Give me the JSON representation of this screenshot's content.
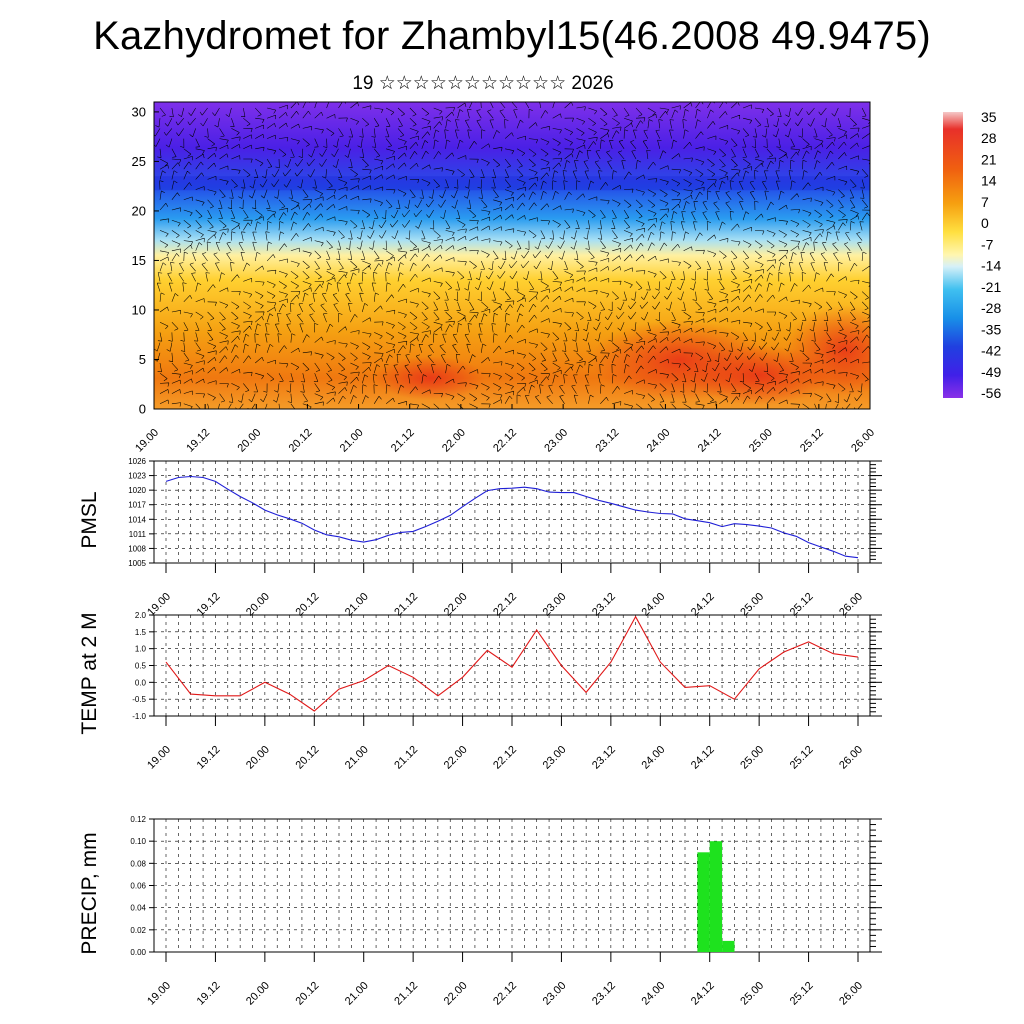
{
  "title": "Kazhydromet for Zhambyl15(46.2008 49.9475)",
  "subtitle": "19 ☆☆☆☆☆☆☆☆☆☆☆ 2026",
  "time_ticks": [
    "19.00",
    "19.12",
    "20.00",
    "20.12",
    "21.00",
    "21.12",
    "22.00",
    "22.12",
    "23.00",
    "23.12",
    "24.00",
    "24.12",
    "25.00",
    "25.12",
    "26.00"
  ],
  "colors": {
    "pmsl_line": "#1f1fd6",
    "temp_line": "#e01818",
    "precip_bar": "#1ee21e",
    "wind_barb": "#000000"
  },
  "chart_data": [
    {
      "id": "cross-section",
      "type": "heatmap",
      "title": "",
      "xlabel": "",
      "ylabel": "",
      "x_ticks": [
        "19.00",
        "19.12",
        "20.00",
        "20.12",
        "21.00",
        "21.12",
        "22.00",
        "22.12",
        "23.00",
        "23.12",
        "24.00",
        "24.12",
        "25.00",
        "25.12",
        "26.00"
      ],
      "y_ticks": [
        0,
        5,
        10,
        15,
        20,
        25,
        30
      ],
      "ylim": [
        0,
        31
      ],
      "overlay": "wind barbs",
      "colorbar": {
        "labels": [
          "35",
          "28",
          "21",
          "14",
          "7",
          "0",
          "-7",
          "-14",
          "-21",
          "-28",
          "-35",
          "-42",
          "-49",
          "-56"
        ],
        "range": [
          -60,
          38
        ]
      },
      "profile_levels": [
        0,
        2,
        4,
        6,
        8,
        10,
        12,
        14,
        15,
        16,
        17,
        18,
        19,
        20,
        21,
        22,
        23,
        24,
        25,
        26,
        27,
        28,
        30,
        31
      ],
      "profile_values": [
        4,
        10,
        9,
        5,
        2,
        0,
        -2,
        -5,
        -8,
        -14,
        -22,
        -30,
        -38,
        -44,
        -49,
        -52,
        -55,
        -57,
        -58,
        -57,
        -55,
        -53,
        -52,
        -52
      ]
    },
    {
      "id": "pmsl",
      "type": "line",
      "ylabel": "PMSL",
      "ylim": [
        1005,
        1026
      ],
      "y_ticks": [
        1005,
        1008,
        1011,
        1014,
        1017,
        1020,
        1023,
        1026
      ],
      "x": [
        0,
        1,
        2,
        3,
        4,
        5,
        6,
        7,
        8,
        9,
        10,
        11,
        12,
        13,
        14,
        15,
        16,
        17,
        18,
        19,
        20,
        21,
        22,
        23,
        24,
        25,
        26,
        27,
        28,
        29,
        30,
        31,
        32,
        33,
        34,
        35,
        36,
        37,
        38,
        39,
        40,
        41,
        42,
        43,
        44,
        45,
        46,
        47,
        48,
        49,
        50,
        51,
        52,
        53,
        54,
        55,
        56
      ],
      "values": [
        1021.8,
        1022.6,
        1022.8,
        1022.6,
        1021.8,
        1020.2,
        1018.7,
        1017.4,
        1015.9,
        1014.9,
        1014.1,
        1013.2,
        1011.8,
        1010.8,
        1010.4,
        1009.7,
        1009.3,
        1009.8,
        1010.7,
        1011.3,
        1011.5,
        1012.5,
        1013.6,
        1014.8,
        1016.6,
        1018.3,
        1019.9,
        1020.3,
        1020.4,
        1020.6,
        1020.3,
        1019.6,
        1019.5,
        1019.5,
        1018.7,
        1017.9,
        1017.3,
        1016.6,
        1015.9,
        1015.5,
        1015.2,
        1015.1,
        1014.1,
        1013.7,
        1013.3,
        1012.5,
        1013.1,
        1012.9,
        1012.6,
        1012.2,
        1011.2,
        1010.5,
        1009.2,
        1008.3,
        1007.4,
        1006.4,
        1006.1
      ]
    },
    {
      "id": "temp2m",
      "type": "line",
      "ylabel": "TEMP at 2 M",
      "ylim": [
        -1.0,
        2.0
      ],
      "y_ticks": [
        "-1.0",
        "-0.5",
        "0.0",
        "0.5",
        "1.0",
        "1.5",
        "2.0"
      ],
      "x": [
        0,
        2,
        4,
        6,
        8,
        10,
        12,
        14,
        16,
        18,
        20,
        22,
        24,
        26,
        28,
        30,
        32,
        34,
        36,
        38,
        40,
        42,
        44,
        46,
        48,
        50,
        52,
        54,
        56
      ],
      "values": [
        0.6,
        -0.35,
        -0.4,
        -0.4,
        0.0,
        -0.35,
        -0.85,
        -0.2,
        0.05,
        0.5,
        0.15,
        -0.4,
        0.15,
        0.95,
        0.45,
        1.55,
        0.5,
        -0.3,
        0.6,
        1.95,
        0.6,
        -0.15,
        -0.1,
        -0.5,
        0.4,
        0.9,
        1.2,
        0.85,
        0.75
      ]
    },
    {
      "id": "precip",
      "type": "bar",
      "ylabel": "PRECIP, mm",
      "ylim": [
        0,
        0.12
      ],
      "y_ticks": [
        "0.00",
        "0.02",
        "0.04",
        "0.06",
        "0.08",
        "0.10",
        "0.12"
      ],
      "bars": [
        {
          "x": 43.5,
          "value": 0.09
        },
        {
          "x": 44.5,
          "value": 0.1
        },
        {
          "x": 45.5,
          "value": 0.01
        }
      ]
    }
  ]
}
